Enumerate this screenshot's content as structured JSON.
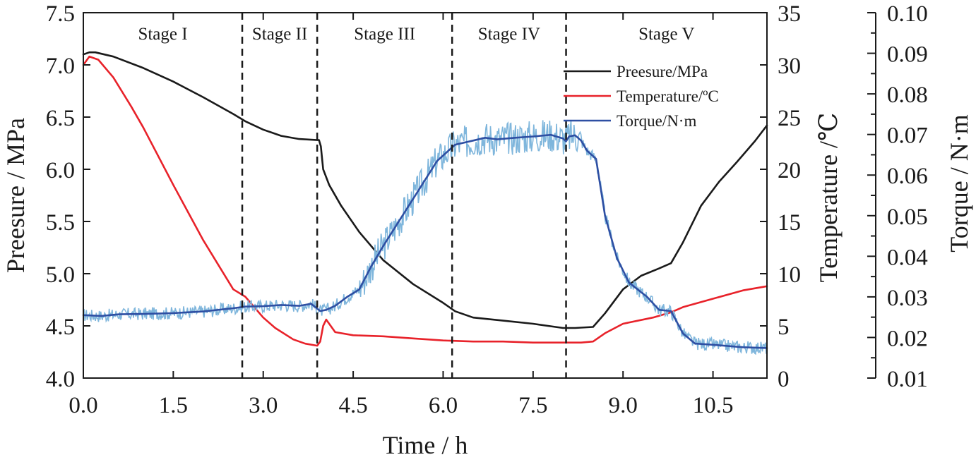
{
  "chart_data": {
    "type": "line",
    "title": "",
    "xlabel": "Time / h",
    "xlim": [
      0,
      11.4
    ],
    "xticks": [
      "0.0",
      "1.5",
      "3.0",
      "4.5",
      "6.0",
      "7.5",
      "9.0",
      "10.5"
    ],
    "xtick_values": [
      0,
      1.5,
      3.0,
      4.5,
      6.0,
      7.5,
      9.0,
      10.5
    ],
    "axes": {
      "pressure": {
        "label": "Preesure / MPa",
        "lim": [
          4.0,
          7.5
        ],
        "ticks": [
          "4.0",
          "4.5",
          "5.0",
          "5.5",
          "6.0",
          "6.5",
          "7.0",
          "7.5"
        ],
        "tick_values": [
          4.0,
          4.5,
          5.0,
          5.5,
          6.0,
          6.5,
          7.0,
          7.5
        ]
      },
      "temperature": {
        "label": "Temperature /℃",
        "lim": [
          0,
          35
        ],
        "ticks": [
          "0",
          "5",
          "10",
          "15",
          "20",
          "25",
          "30",
          "35"
        ],
        "tick_values": [
          0,
          5,
          10,
          15,
          20,
          25,
          30,
          35
        ]
      },
      "torque": {
        "label": "Torque  / N·m",
        "lim": [
          0.01,
          0.1
        ],
        "ticks": [
          "0.01",
          "0.02",
          "0.03",
          "0.04",
          "0.05",
          "0.06",
          "0.07",
          "0.08",
          "0.09",
          "0.10"
        ],
        "tick_values": [
          0.01,
          0.02,
          0.03,
          0.04,
          0.05,
          0.06,
          0.07,
          0.08,
          0.09,
          0.1
        ]
      }
    },
    "stages": [
      {
        "label": "Stage I",
        "start": 0.0,
        "end": 2.65
      },
      {
        "label": "Stage II",
        "start": 2.65,
        "end": 3.9
      },
      {
        "label": "Stage III",
        "start": 3.9,
        "end": 6.15
      },
      {
        "label": "Stage IV",
        "start": 6.15,
        "end": 8.05
      },
      {
        "label": "Stage V",
        "start": 8.05,
        "end": 11.4
      }
    ],
    "stage_boundaries": [
      2.65,
      3.9,
      6.15,
      8.05
    ],
    "legend": [
      {
        "label": "Preesure/MPa",
        "color": "#1a1a1a"
      },
      {
        "label": "Temperature/ºC",
        "color": "#e8222a"
      },
      {
        "label": "Torque/N·m",
        "color": "#2e4fa3"
      }
    ],
    "legend_position": "top-right",
    "series": [
      {
        "name": "Preesure/MPa",
        "axis": "pressure",
        "color": "#1a1a1a",
        "x": [
          0.0,
          0.1,
          0.2,
          0.5,
          1.0,
          1.5,
          2.0,
          2.5,
          2.7,
          3.0,
          3.3,
          3.6,
          3.9,
          3.93,
          3.96,
          4.0,
          4.1,
          4.3,
          4.6,
          5.0,
          5.5,
          6.0,
          6.2,
          6.5,
          7.0,
          7.5,
          8.0,
          8.2,
          8.5,
          8.7,
          9.0,
          9.3,
          9.6,
          9.8,
          10.0,
          10.3,
          10.6,
          10.9,
          11.2,
          11.4
        ],
        "y": [
          7.1,
          7.12,
          7.12,
          7.08,
          6.97,
          6.84,
          6.69,
          6.53,
          6.46,
          6.38,
          6.32,
          6.29,
          6.28,
          6.28,
          6.22,
          6.0,
          5.85,
          5.65,
          5.4,
          5.13,
          4.9,
          4.72,
          4.64,
          4.58,
          4.55,
          4.52,
          4.48,
          4.48,
          4.49,
          4.62,
          4.85,
          4.98,
          5.05,
          5.1,
          5.3,
          5.65,
          5.88,
          6.07,
          6.27,
          6.42
        ]
      },
      {
        "name": "Temperature/ºC",
        "axis": "temperature",
        "color": "#e8222a",
        "x": [
          0.0,
          0.1,
          0.25,
          0.5,
          0.8,
          1.0,
          1.5,
          2.0,
          2.5,
          2.7,
          3.0,
          3.2,
          3.5,
          3.7,
          3.9,
          3.95,
          4.0,
          4.05,
          4.2,
          4.5,
          5.0,
          5.5,
          6.0,
          6.5,
          7.0,
          7.5,
          8.0,
          8.3,
          8.5,
          8.7,
          9.0,
          9.5,
          9.8,
          10.0,
          10.5,
          11.0,
          11.4
        ],
        "y": [
          30.0,
          30.8,
          30.5,
          28.8,
          26.0,
          24.0,
          18.5,
          13.2,
          8.5,
          7.8,
          5.8,
          4.8,
          3.7,
          3.3,
          3.1,
          3.5,
          5.0,
          5.6,
          4.4,
          4.1,
          4.0,
          3.8,
          3.6,
          3.5,
          3.5,
          3.4,
          3.4,
          3.4,
          3.5,
          4.3,
          5.2,
          5.8,
          6.3,
          6.8,
          7.6,
          8.4,
          8.8
        ]
      },
      {
        "name": "Torque/N·m",
        "axis": "torque",
        "color": "#2e4fa3",
        "raw_color": "#7fb6dc",
        "x": [
          0.0,
          0.3,
          0.6,
          1.0,
          1.5,
          2.0,
          2.5,
          2.7,
          3.0,
          3.3,
          3.6,
          3.8,
          3.95,
          4.05,
          4.2,
          4.4,
          4.6,
          4.8,
          5.0,
          5.3,
          5.6,
          5.9,
          6.2,
          6.5,
          6.7,
          6.9,
          7.2,
          7.5,
          7.8,
          8.0,
          8.05,
          8.1,
          8.2,
          8.3,
          8.4,
          8.55,
          8.7,
          8.9,
          9.1,
          9.4,
          9.6,
          9.8,
          10.0,
          10.2,
          10.5,
          11.0,
          11.4
        ],
        "y": [
          0.0255,
          0.0253,
          0.0257,
          0.0258,
          0.026,
          0.0264,
          0.0272,
          0.0276,
          0.0277,
          0.028,
          0.0278,
          0.0283,
          0.0265,
          0.0268,
          0.0278,
          0.03,
          0.0318,
          0.0375,
          0.0425,
          0.0495,
          0.0565,
          0.0635,
          0.0675,
          0.0685,
          0.0692,
          0.0688,
          0.0692,
          0.0695,
          0.0699,
          0.069,
          0.0683,
          0.0695,
          0.0698,
          0.0685,
          0.066,
          0.064,
          0.05,
          0.0395,
          0.0335,
          0.03,
          0.0268,
          0.0265,
          0.021,
          0.0185,
          0.0182,
          0.0176,
          0.0174
        ]
      }
    ]
  }
}
